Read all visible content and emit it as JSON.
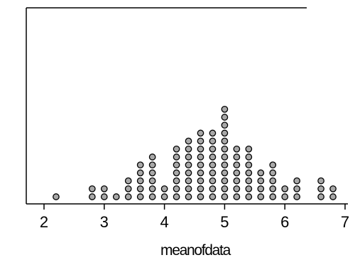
{
  "chart_data": {
    "type": "scatter",
    "subtype": "dot-plot",
    "title": "",
    "xlabel": "meanofdata",
    "ylabel": "",
    "xlim": [
      1.75,
      7.2
    ],
    "x_ticks": [
      2,
      3,
      4,
      5,
      6,
      7
    ],
    "grid": false,
    "legend": "none",
    "colors": {
      "dot_fill": "#a8a8a8",
      "dot_stroke": "#000000",
      "axis": "#000000"
    },
    "points": [
      {
        "x": 2.2,
        "count": 1
      },
      {
        "x": 2.8,
        "count": 2
      },
      {
        "x": 3.0,
        "count": 2
      },
      {
        "x": 3.2,
        "count": 1
      },
      {
        "x": 3.4,
        "count": 3
      },
      {
        "x": 3.6,
        "count": 5
      },
      {
        "x": 3.8,
        "count": 6
      },
      {
        "x": 4.0,
        "count": 2
      },
      {
        "x": 4.2,
        "count": 7
      },
      {
        "x": 4.4,
        "count": 8
      },
      {
        "x": 4.6,
        "count": 9
      },
      {
        "x": 4.8,
        "count": 9
      },
      {
        "x": 5.0,
        "count": 12
      },
      {
        "x": 5.2,
        "count": 7
      },
      {
        "x": 5.4,
        "count": 7
      },
      {
        "x": 5.6,
        "count": 4
      },
      {
        "x": 5.8,
        "count": 5
      },
      {
        "x": 6.0,
        "count": 2
      },
      {
        "x": 6.2,
        "count": 3
      },
      {
        "x": 6.6,
        "count": 3
      },
      {
        "x": 6.8,
        "count": 2
      }
    ]
  }
}
